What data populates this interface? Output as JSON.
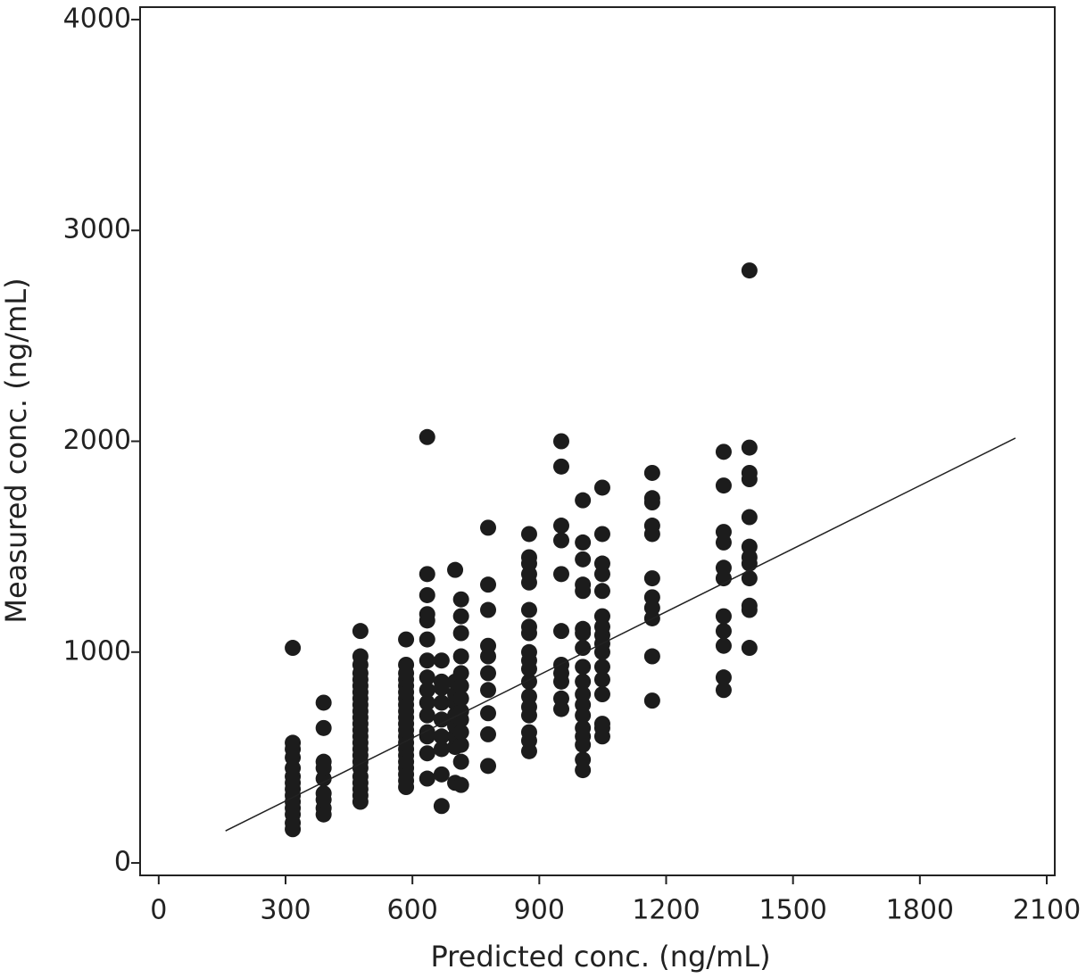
{
  "chart_data": {
    "type": "scatter",
    "xlabel": "Predicted conc. (ng/mL)",
    "ylabel": "Measured conc. (ng/mL)",
    "xlim": [
      -44,
      2119
    ],
    "ylim": [
      -59,
      4059
    ],
    "xticks": [
      0,
      300,
      600,
      900,
      1200,
      1500,
      1800,
      2100
    ],
    "yticks": [
      0,
      1000,
      2000,
      3000,
      4000
    ],
    "color": "#1c1c1c",
    "line": {
      "x": [
        158,
        2026
      ],
      "values": [
        152,
        2015
      ],
      "color": "#222222"
    },
    "series": [
      {
        "x": [
          317,
          317,
          317,
          317,
          317,
          317,
          317,
          317,
          317,
          317,
          317,
          317,
          317,
          317
        ],
        "values": [
          160,
          190,
          230,
          260,
          290,
          320,
          350,
          380,
          410,
          450,
          500,
          540,
          570,
          1020
        ]
      },
      {
        "x": [
          390,
          390,
          390,
          390,
          390,
          390,
          390,
          390,
          390
        ],
        "values": [
          230,
          260,
          300,
          330,
          400,
          450,
          480,
          640,
          760
        ]
      },
      {
        "x": [
          477,
          477,
          477,
          477,
          477,
          477,
          477,
          477,
          477,
          477,
          477,
          477,
          477,
          477,
          477,
          477,
          477,
          477,
          477,
          477,
          477,
          477,
          477,
          477
        ],
        "values": [
          290,
          320,
          350,
          380,
          410,
          450,
          480,
          510,
          540,
          570,
          600,
          630,
          660,
          690,
          720,
          750,
          780,
          810,
          840,
          870,
          900,
          940,
          980,
          1100
        ]
      },
      {
        "x": [
          585,
          585,
          585,
          585,
          585,
          585,
          585,
          585,
          585,
          585,
          585,
          585,
          585,
          585,
          585,
          585,
          585,
          585,
          585,
          585,
          585
        ],
        "values": [
          360,
          390,
          420,
          450,
          480,
          510,
          540,
          570,
          600,
          630,
          660,
          690,
          720,
          750,
          780,
          810,
          840,
          870,
          900,
          940,
          1060
        ]
      },
      {
        "x": [
          635,
          635,
          635,
          635,
          635,
          635,
          635,
          635,
          635,
          635,
          635,
          635,
          635,
          635,
          635
        ],
        "values": [
          400,
          520,
          600,
          620,
          700,
          760,
          820,
          880,
          960,
          1060,
          1150,
          1180,
          1270,
          1370,
          2020
        ]
      },
      {
        "x": [
          669,
          669,
          669,
          669,
          669,
          669,
          669,
          669,
          669
        ],
        "values": [
          270,
          420,
          540,
          600,
          680,
          760,
          830,
          860,
          960
        ]
      },
      {
        "x": [
          701,
          701,
          701,
          701,
          701,
          701,
          701,
          701,
          701
        ],
        "values": [
          380,
          550,
          600,
          650,
          700,
          760,
          800,
          860,
          1390
        ]
      },
      {
        "x": [
          715,
          715,
          715,
          715,
          715,
          715,
          715,
          715,
          715,
          715,
          715,
          715,
          715
        ],
        "values": [
          370,
          480,
          560,
          620,
          680,
          720,
          780,
          840,
          900,
          980,
          1090,
          1170,
          1250
        ]
      },
      {
        "x": [
          779,
          779,
          779,
          779,
          779,
          779,
          779,
          779,
          779,
          779
        ],
        "values": [
          460,
          610,
          710,
          820,
          900,
          980,
          1030,
          1200,
          1320,
          1590
        ]
      },
      {
        "x": [
          876,
          876,
          876,
          876,
          876,
          876,
          876,
          876,
          876,
          876,
          876,
          876,
          876,
          876,
          876,
          876,
          876,
          876
        ],
        "values": [
          530,
          580,
          620,
          700,
          740,
          790,
          860,
          920,
          960,
          1000,
          1090,
          1120,
          1200,
          1330,
          1370,
          1420,
          1450,
          1560
        ]
      },
      {
        "x": [
          952,
          952,
          952,
          952,
          952,
          952,
          952,
          952,
          952,
          952,
          952
        ],
        "values": [
          730,
          780,
          860,
          900,
          940,
          1100,
          1370,
          1530,
          1600,
          1880,
          2000
        ]
      },
      {
        "x": [
          1003,
          1003,
          1003,
          1003,
          1003,
          1003,
          1003,
          1003,
          1003,
          1003,
          1003,
          1003,
          1003,
          1003,
          1003,
          1003,
          1003,
          1003
        ],
        "values": [
          440,
          490,
          560,
          600,
          640,
          700,
          750,
          800,
          860,
          930,
          1020,
          1090,
          1110,
          1290,
          1320,
          1440,
          1520,
          1720
        ]
      },
      {
        "x": [
          1049,
          1049,
          1049,
          1049,
          1049,
          1049,
          1049,
          1049,
          1049,
          1049,
          1049,
          1049,
          1049,
          1049,
          1049,
          1049
        ],
        "values": [
          600,
          640,
          660,
          800,
          870,
          930,
          1000,
          1040,
          1080,
          1120,
          1170,
          1290,
          1370,
          1420,
          1560,
          1780
        ]
      },
      {
        "x": [
          1167,
          1167,
          1167,
          1167,
          1167,
          1167,
          1167,
          1167,
          1167,
          1167,
          1167
        ],
        "values": [
          770,
          980,
          1160,
          1210,
          1260,
          1350,
          1560,
          1600,
          1710,
          1730,
          1850
        ]
      },
      {
        "x": [
          1336,
          1336,
          1336,
          1336,
          1336,
          1336,
          1336,
          1336,
          1336,
          1336,
          1336
        ],
        "values": [
          820,
          880,
          1030,
          1100,
          1170,
          1350,
          1400,
          1520,
          1570,
          1790,
          1950
        ]
      },
      {
        "x": [
          1397,
          1397,
          1397,
          1397,
          1397,
          1397,
          1397,
          1397,
          1397,
          1397,
          1397,
          1397
        ],
        "values": [
          1020,
          1200,
          1220,
          1350,
          1420,
          1450,
          1500,
          1640,
          1820,
          1850,
          1970,
          2810
        ]
      }
    ]
  }
}
